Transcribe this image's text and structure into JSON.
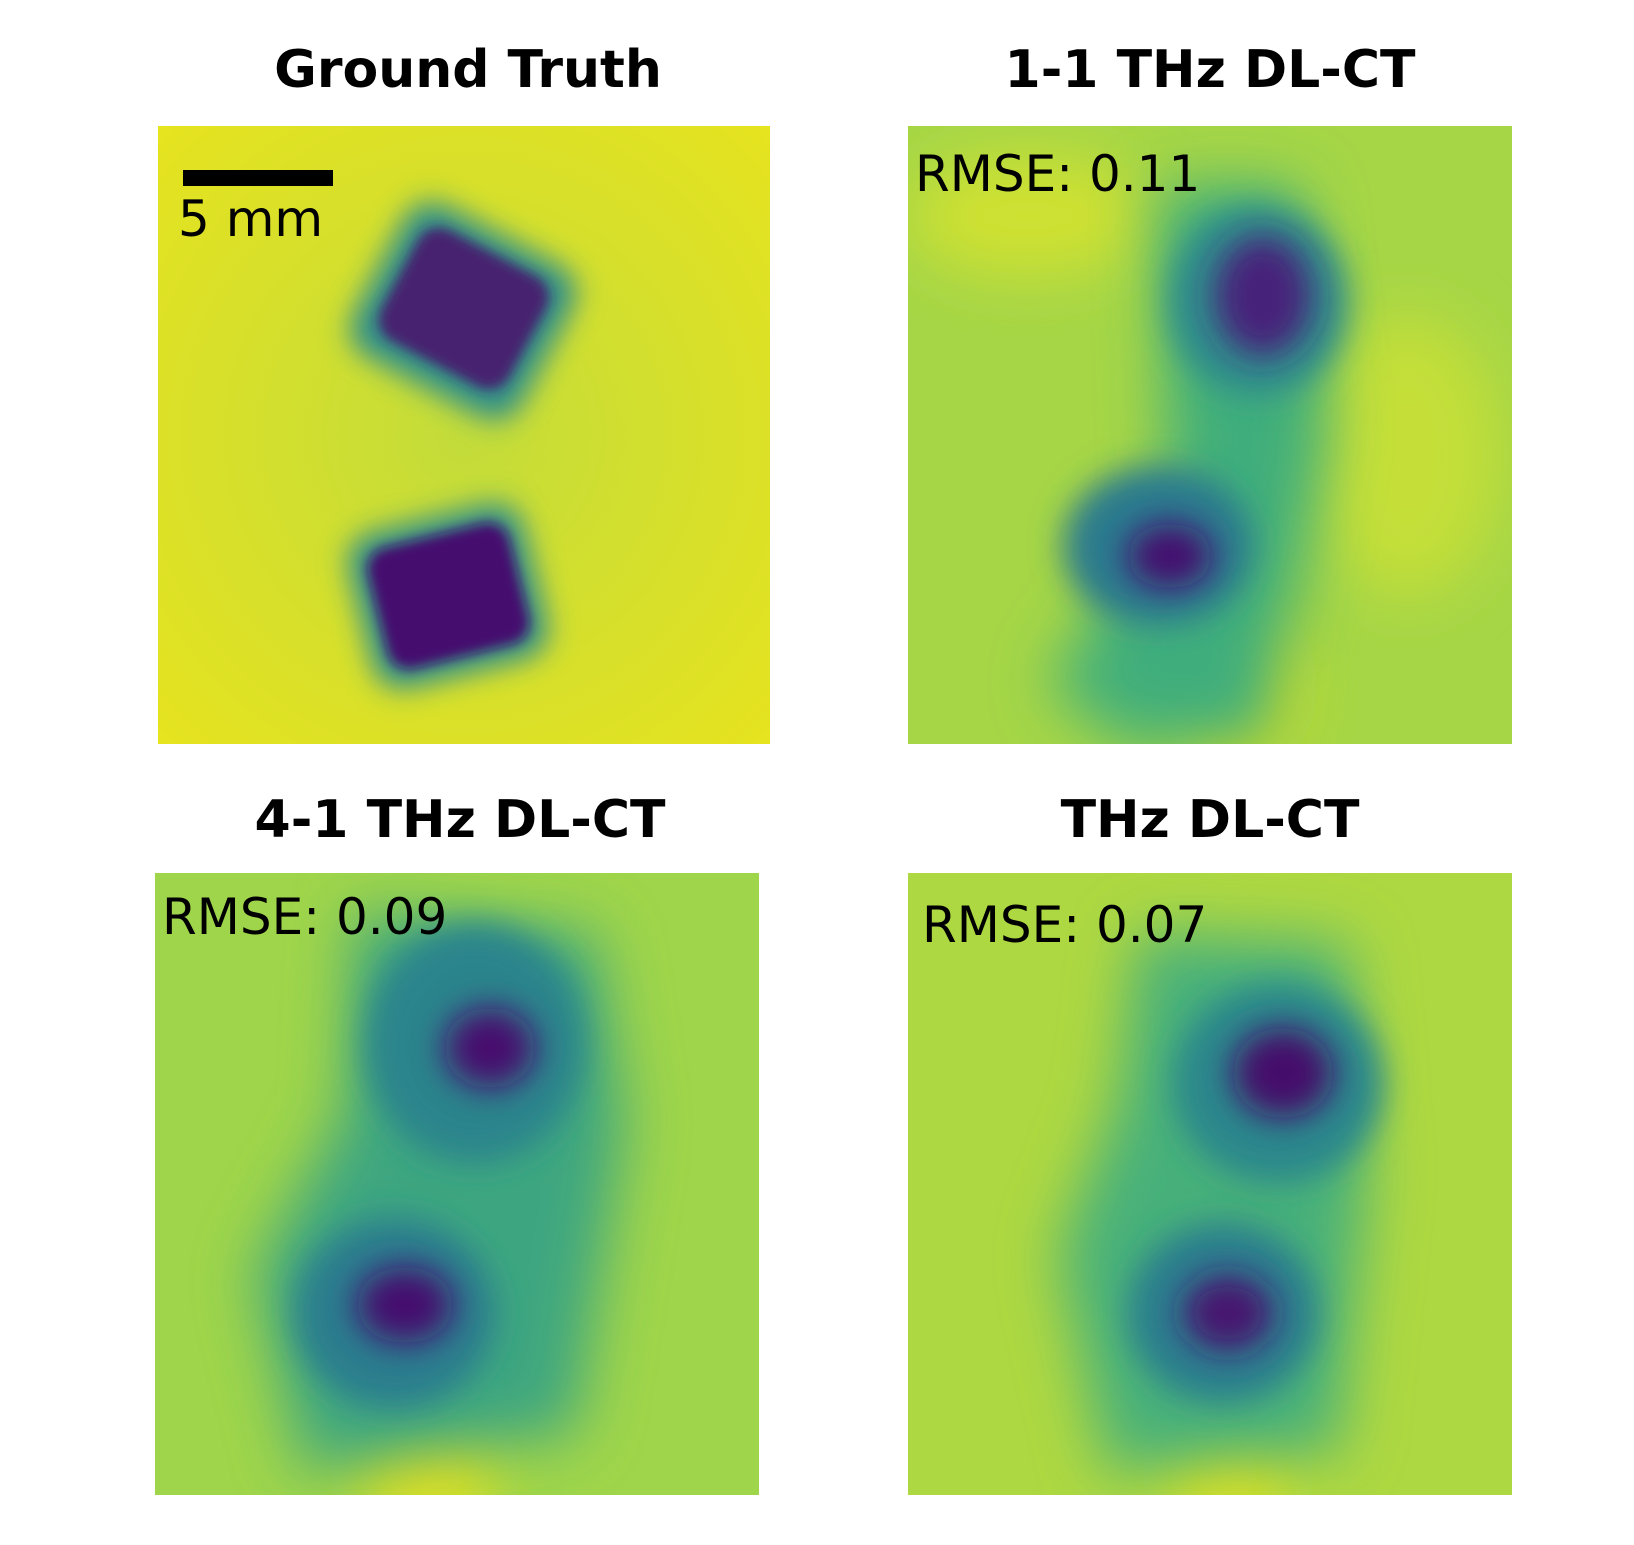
{
  "panels": [
    {
      "title": "Ground Truth",
      "rmse": "",
      "scale_bar": "5 mm"
    },
    {
      "title": "1-1 THz DL-CT",
      "rmse": "RMSE: 0.11"
    },
    {
      "title": "4-1 THz DL-CT",
      "rmse": "RMSE: 0.09"
    },
    {
      "title": "THz DL-CT",
      "rmse": "RMSE: 0.07"
    }
  ],
  "colormap": {
    "name": "viridis",
    "background": "#d9e22a",
    "low": "#45106e",
    "mid": "#2a9a8a"
  }
}
